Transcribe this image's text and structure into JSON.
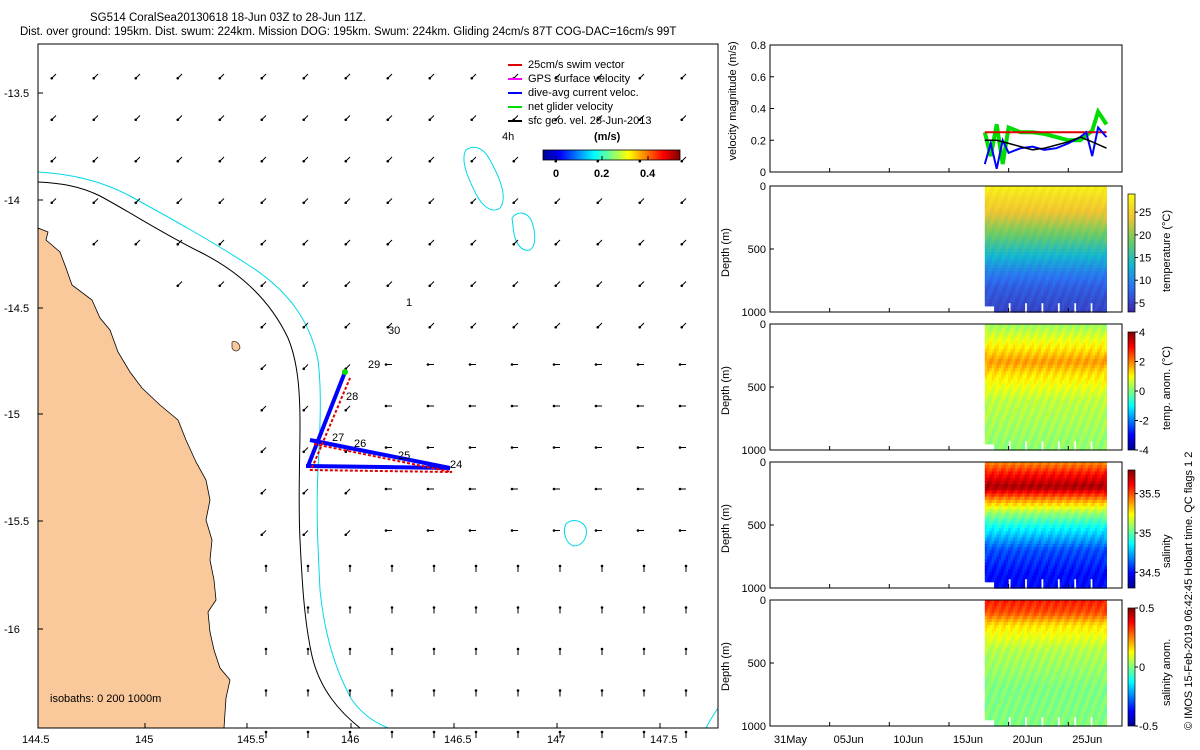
{
  "header": {
    "title_line1": "SG514 CoralSea20130618 18-Jun 03Z to 28-Jun 11Z.",
    "title_line2": "Dist. over ground: 195km. Dist. swum: 224km. Mission DOG: 195km. Swum: 224km. Gliding 24cm/s 87T COG-DAC=16cm/s 99T"
  },
  "colors": {
    "land": "#f9c89b",
    "shelf_200m": "#000000",
    "iso_1000m": "#00d8e8",
    "swim": "#e00000",
    "gps": "#ff00ff",
    "dac": "#0000ff",
    "net": "#00dd00",
    "geo": "#000000"
  },
  "map": {
    "x_ticks": [
      "144.5",
      "145",
      "145.5",
      "146",
      "146.5",
      "147",
      "147.5"
    ],
    "y_ticks": [
      "-13.5",
      "-14",
      "-14.5",
      "-15",
      "-15.5",
      "-16"
    ],
    "isobath_note": "isobaths: 0   200  1000m",
    "day_labels": [
      "1",
      "30",
      "29",
      "28",
      "27",
      "26",
      "25",
      "24",
      "4h"
    ],
    "colorbar_title": "(m/s)",
    "colorbar_ticks": [
      "0",
      "0.2",
      "0.4"
    ],
    "legend": [
      {
        "label": "25cm/s swim vector"
      },
      {
        "label": "GPS surface velocity"
      },
      {
        "label": "dive-avg current veloc."
      },
      {
        "label": "net glider velocity"
      },
      {
        "label": "sfc geo. vel. 28-Jun-2013"
      }
    ]
  },
  "side_note": "© IMOS 15-Feb-2019 06:42:45 Hobart time. QC flags 1  2",
  "chart_data": [
    {
      "type": "line",
      "title": "velocity magnitude",
      "ylabel": "velocity magnitude (m/s)",
      "ylim": [
        0,
        0.8
      ],
      "y_ticks": [
        "0",
        "0.2",
        "0.4",
        "0.6",
        "0.8"
      ],
      "x_days": [
        0,
        5,
        10,
        15,
        20,
        25,
        29.5
      ],
      "x_labels": [
        "31May",
        "05Jun",
        "10Jun",
        "15Jun",
        "20Jun",
        "25Jun"
      ],
      "series": [
        {
          "name": "net glider velocity",
          "x": [
            18.0,
            18.5,
            19.0,
            19.5,
            20.0,
            21.0,
            22.0,
            23.0,
            24.0,
            25.0,
            26.0,
            27.0,
            27.5,
            28.2
          ],
          "y": [
            0.25,
            0.1,
            0.3,
            0.05,
            0.28,
            0.25,
            0.25,
            0.24,
            0.22,
            0.2,
            0.2,
            0.26,
            0.38,
            0.3
          ]
        },
        {
          "name": "25cm/s swim vector",
          "x": [
            18.0,
            26.5,
            26.5,
            28.2
          ],
          "y": [
            0.25,
            0.25,
            0.25,
            0.25
          ]
        },
        {
          "name": "dive-avg current veloc.",
          "x": [
            18.0,
            18.5,
            19.0,
            19.5,
            20.0,
            21.0,
            22.0,
            23.0,
            24.0,
            25.0,
            26.0,
            26.5,
            27.0,
            27.5,
            28.2
          ],
          "y": [
            0.05,
            0.18,
            0.02,
            0.2,
            0.12,
            0.15,
            0.16,
            0.14,
            0.15,
            0.18,
            0.22,
            0.25,
            0.1,
            0.28,
            0.22
          ]
        },
        {
          "name": "sfc geo. vel.",
          "x": [
            18.0,
            19.0,
            20.0,
            21.0,
            22.0,
            23.0,
            24.0,
            25.0,
            26.0,
            27.0,
            28.2
          ],
          "y": [
            0.2,
            0.2,
            0.18,
            0.16,
            0.14,
            0.15,
            0.17,
            0.19,
            0.22,
            0.19,
            0.15
          ]
        }
      ]
    },
    {
      "type": "heatmap",
      "ylabel": "Depth (m)",
      "ylim": [
        0,
        1000
      ],
      "y_ticks": [
        "0",
        "500",
        "1000"
      ],
      "cbar_label": "temperature (°C)",
      "cbar_ticks": [
        "5",
        "10",
        "15",
        "20",
        "25"
      ],
      "vmin": 3,
      "vmax": 29,
      "depth_profile": [
        [
          0,
          28
        ],
        [
          100,
          26
        ],
        [
          200,
          24
        ],
        [
          300,
          21
        ],
        [
          400,
          18
        ],
        [
          500,
          15
        ],
        [
          600,
          12
        ],
        [
          700,
          9
        ],
        [
          800,
          7
        ],
        [
          900,
          6
        ],
        [
          1000,
          5
        ]
      ]
    },
    {
      "type": "heatmap",
      "ylabel": "Depth (m)",
      "ylim": [
        0,
        1000
      ],
      "y_ticks": [
        "0",
        "500",
        "1000"
      ],
      "cbar_label": "temp. anom. (°C)",
      "cbar_ticks": [
        "-4",
        "-2",
        "0",
        "2",
        "4"
      ],
      "vmin": -4,
      "vmax": 4,
      "depth_profile": [
        [
          0,
          0.2
        ],
        [
          200,
          1.2
        ],
        [
          300,
          1.8
        ],
        [
          400,
          1.2
        ],
        [
          600,
          0.5
        ],
        [
          800,
          0.3
        ],
        [
          1000,
          0.1
        ]
      ]
    },
    {
      "type": "heatmap",
      "ylabel": "Depth (m)",
      "ylim": [
        0,
        1000
      ],
      "y_ticks": [
        "0",
        "500",
        "1000"
      ],
      "cbar_label": "salinity",
      "cbar_ticks": [
        "34.5",
        "35",
        "35.5"
      ],
      "vmin": 34.3,
      "vmax": 35.8,
      "depth_profile": [
        [
          0,
          35.4
        ],
        [
          100,
          35.6
        ],
        [
          200,
          35.75
        ],
        [
          300,
          35.4
        ],
        [
          400,
          35.1
        ],
        [
          500,
          34.9
        ],
        [
          700,
          34.6
        ],
        [
          900,
          34.5
        ],
        [
          1000,
          34.5
        ]
      ]
    },
    {
      "type": "heatmap",
      "ylabel": "Depth (m)",
      "ylim": [
        0,
        1000
      ],
      "y_ticks": [
        "0",
        "500",
        "1000"
      ],
      "cbar_label": "salinity anom.",
      "cbar_ticks": [
        "-0.5",
        "0",
        "0.5"
      ],
      "vmin": -0.5,
      "vmax": 0.5,
      "depth_profile": [
        [
          0,
          0.35
        ],
        [
          100,
          0.3
        ],
        [
          200,
          0.15
        ],
        [
          400,
          0.05
        ],
        [
          700,
          0.0
        ],
        [
          1000,
          0.0
        ]
      ]
    }
  ]
}
